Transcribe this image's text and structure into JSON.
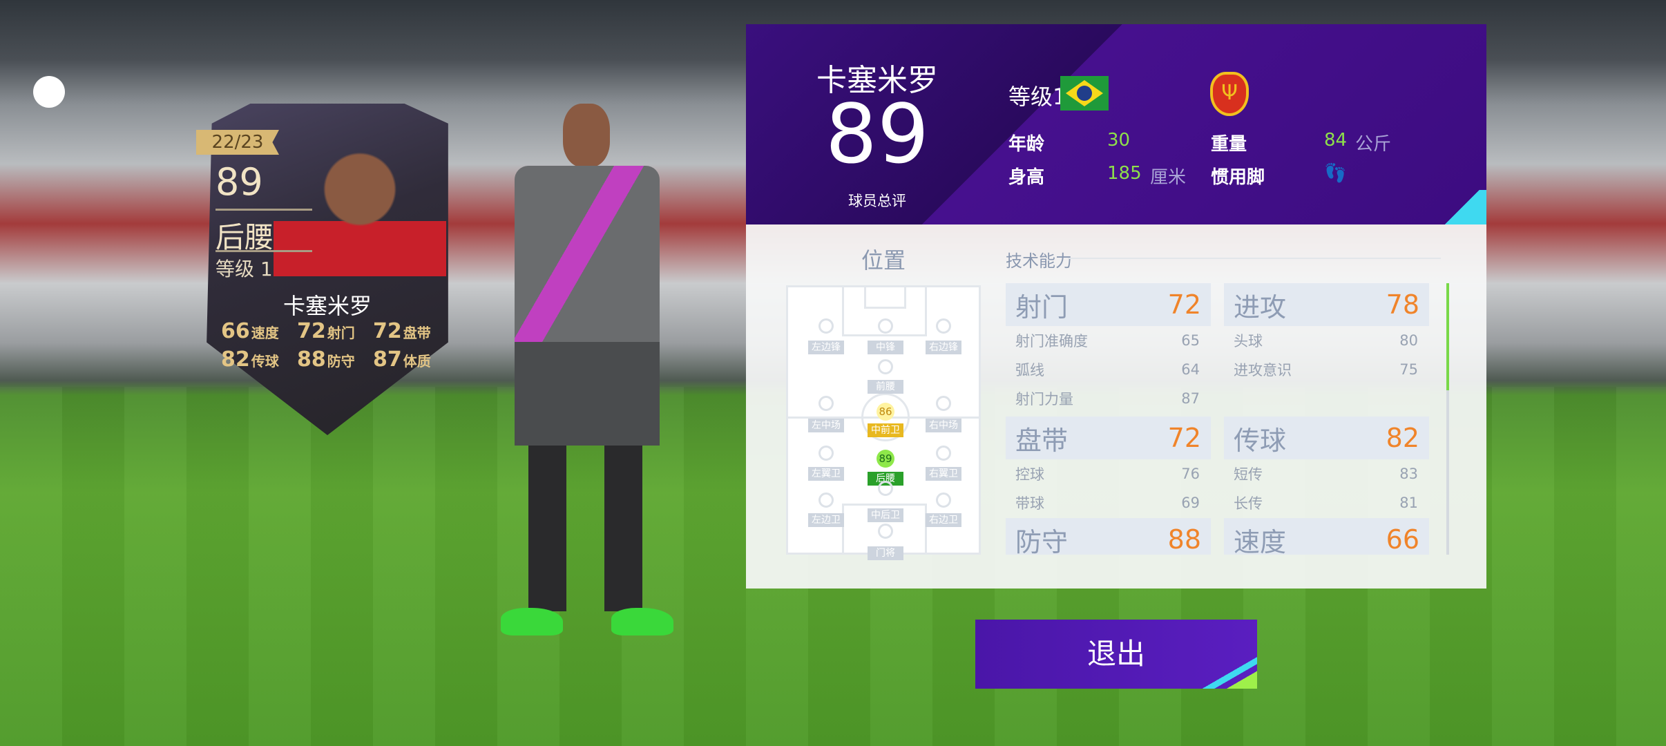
{
  "card": {
    "season": "22/23",
    "overall": "89",
    "position": "后腰",
    "level": "等级 1",
    "name": "卡塞米罗",
    "stats": [
      {
        "v": "66",
        "k": "速度"
      },
      {
        "v": "72",
        "k": "射门"
      },
      {
        "v": "72",
        "k": "盘带"
      },
      {
        "v": "82",
        "k": "传球"
      },
      {
        "v": "88",
        "k": "防守"
      },
      {
        "v": "87",
        "k": "体质"
      }
    ]
  },
  "header": {
    "name": "卡塞米罗",
    "overall": "89",
    "overall_label": "球员总评",
    "level": "等级1",
    "nation_flag": "brazil-flag",
    "club_crest": "club-crest-icon",
    "age_label": "年龄",
    "age": "30",
    "weight_label": "重量",
    "weight": "84",
    "weight_unit": "公斤",
    "height_label": "身高",
    "height": "185",
    "height_unit": "厘米",
    "foot_label": "惯用脚",
    "foot_icon": "footprints-icon"
  },
  "positions": {
    "title": "位置",
    "slots": [
      "左边锋",
      "中锋",
      "右边锋",
      "前腰",
      "左中场",
      "中前卫",
      "右中场",
      "左翼卫",
      "后腰",
      "右翼卫",
      "左边卫",
      "中后卫",
      "右边卫",
      "门将"
    ],
    "ratings": {
      "cm": "86",
      "cdm": "89"
    },
    "colors": {
      "secondary": "#e8b820",
      "primary": "#2aa02a"
    }
  },
  "technical": {
    "title": "技术能力",
    "groups": [
      {
        "name": "射门",
        "value": "72",
        "subs": [
          {
            "k": "射门准确度",
            "v": "65"
          },
          {
            "k": "弧线",
            "v": "64"
          },
          {
            "k": "射门力量",
            "v": "87"
          }
        ]
      },
      {
        "name": "进攻",
        "value": "78",
        "subs": [
          {
            "k": "头球",
            "v": "80"
          },
          {
            "k": "进攻意识",
            "v": "75"
          }
        ]
      },
      {
        "name": "盘带",
        "value": "72",
        "subs": [
          {
            "k": "控球",
            "v": "76"
          },
          {
            "k": "带球",
            "v": "69"
          }
        ]
      },
      {
        "name": "传球",
        "value": "82",
        "subs": [
          {
            "k": "短传",
            "v": "83"
          },
          {
            "k": "长传",
            "v": "81"
          }
        ]
      },
      {
        "name": "防守",
        "value": "88",
        "subs": []
      },
      {
        "name": "速度",
        "value": "66",
        "subs": []
      }
    ]
  },
  "exit_label": "退出"
}
